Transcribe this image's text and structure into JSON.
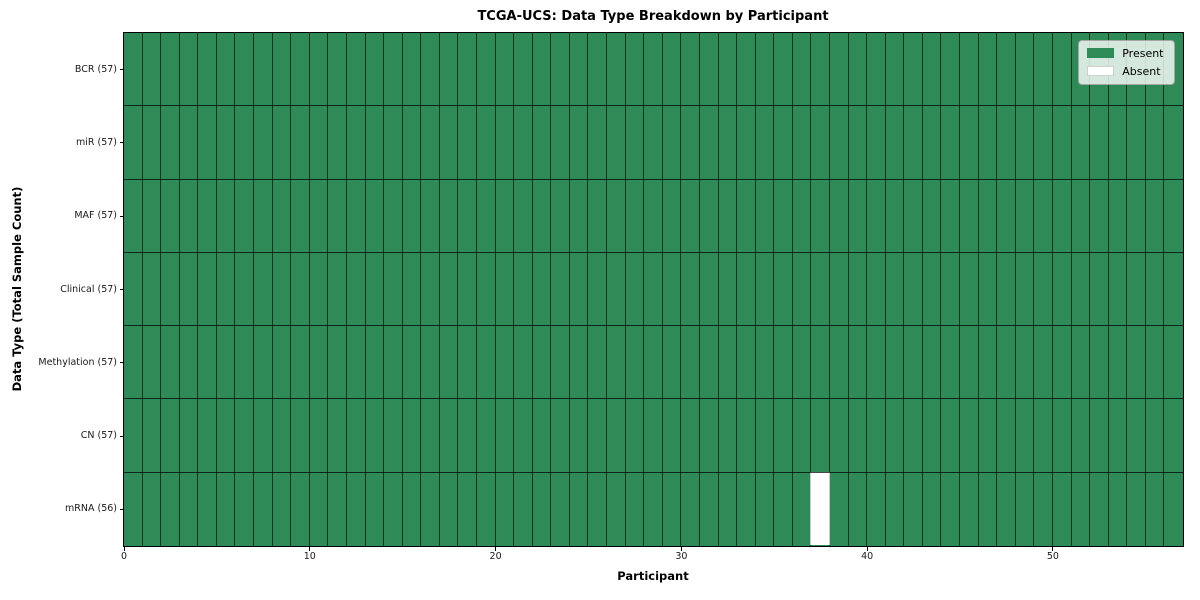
{
  "figure": {
    "background": "#ffffff"
  },
  "chart_data": {
    "type": "heatmap",
    "title": "TCGA-UCS: Data Type Breakdown by Participant",
    "xlabel": "Participant",
    "ylabel": "Data Type (Total Sample Count)",
    "n_participants": 57,
    "x_ticks": [
      0,
      10,
      20,
      30,
      40,
      50
    ],
    "rows": [
      {
        "label": "BCR (57)",
        "data_type": "BCR",
        "total_samples": 57,
        "absent_participants": []
      },
      {
        "label": "miR (57)",
        "data_type": "miR",
        "total_samples": 57,
        "absent_participants": []
      },
      {
        "label": "MAF (57)",
        "data_type": "MAF",
        "total_samples": 57,
        "absent_participants": []
      },
      {
        "label": "Clinical (57)",
        "data_type": "Clinical",
        "total_samples": 57,
        "absent_participants": []
      },
      {
        "label": "Methylation (57)",
        "data_type": "Methylation",
        "total_samples": 57,
        "absent_participants": []
      },
      {
        "label": "CN (57)",
        "data_type": "CN",
        "total_samples": 57,
        "absent_participants": []
      },
      {
        "label": "mRNA (56)",
        "data_type": "mRNA",
        "total_samples": 56,
        "absent_participants": [
          37
        ]
      }
    ],
    "legend": [
      {
        "label": "Present",
        "color": "#2e8b57"
      },
      {
        "label": "Absent",
        "color": "#ffffff"
      }
    ],
    "colors": {
      "present": "#2e8b57",
      "absent": "#ffffff",
      "grid": "#000000",
      "spine": "#000000",
      "absent_edge": "#c8c8c8"
    },
    "grid": true,
    "legend_position": "upper right"
  }
}
